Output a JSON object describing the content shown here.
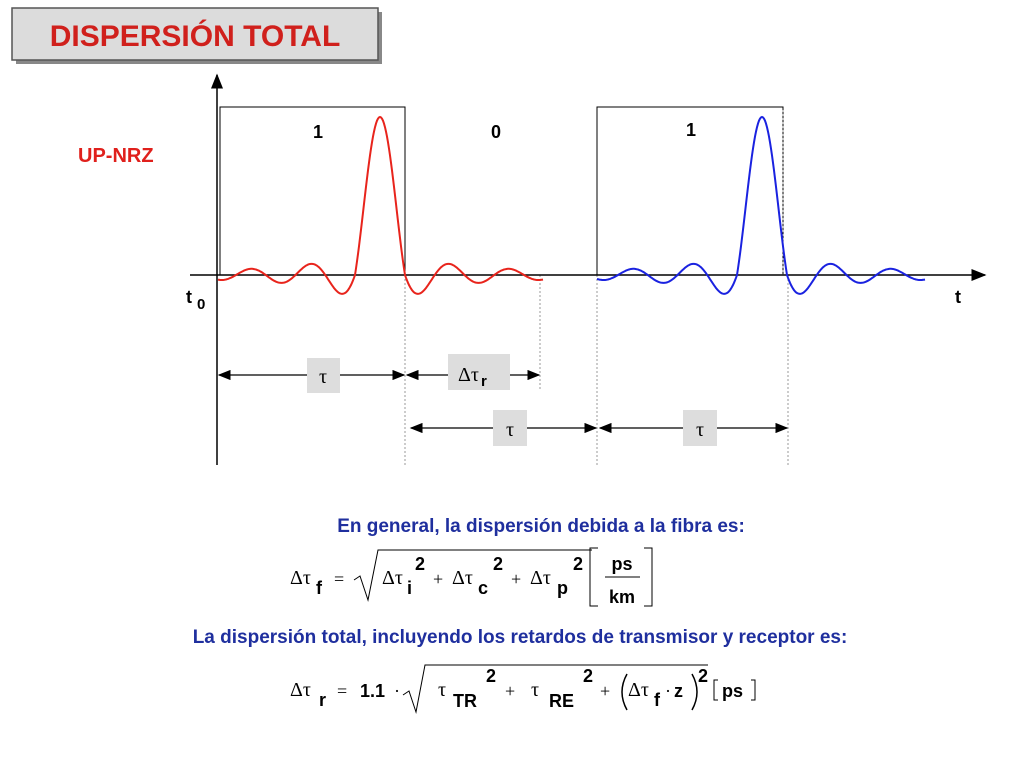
{
  "title": "DISPERSIÓN TOTAL",
  "signal_label": "UP-NRZ",
  "bits": [
    "1",
    "0",
    "1"
  ],
  "axis": {
    "origin_label": "t",
    "origin_subscript": "0",
    "end_label": "t"
  },
  "intervals": [
    {
      "symbol": "τ"
    },
    {
      "symbol": "Δτ",
      "subscript": "r"
    },
    {
      "symbol": "τ"
    },
    {
      "symbol": "τ"
    }
  ],
  "text_1": "En general, la dispersión debida a la fibra es:",
  "formula_1": {
    "lhs": {
      "symbol": "Δτ",
      "sub": "f"
    },
    "equals": "=",
    "plus": "+",
    "terms": [
      {
        "symbol": "Δτ",
        "sub": "i",
        "power": "2"
      },
      {
        "symbol": "Δτ",
        "sub": "c",
        "power": "2"
      },
      {
        "symbol": "Δτ",
        "sub": "p",
        "power": "2"
      }
    ],
    "unit": {
      "numerator": "ps",
      "denominator": "km"
    }
  },
  "text_2": "La dispersión total, incluyendo los retardos de transmisor y receptor es:",
  "formula_2": {
    "lhs": {
      "symbol": "Δτ",
      "sub": "r"
    },
    "equals": "=",
    "factor": "1.1",
    "dot": "·",
    "plus": "+",
    "terms": [
      {
        "symbol": "τ",
        "sub": "TR",
        "power": "2"
      },
      {
        "symbol": "τ",
        "sub": "RE",
        "power": "2"
      },
      {
        "symbol": "Δτ",
        "sub": "f",
        "var": "z",
        "power": "2"
      }
    ],
    "unit": "ps"
  }
}
